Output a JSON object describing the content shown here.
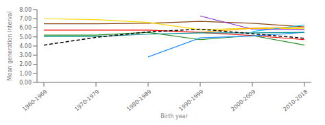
{
  "chart_data": {
    "type": "line",
    "xlabel": "Birth year",
    "ylabel": "Mean generation interval",
    "categories": [
      "1960-1969",
      "1970-1979",
      "1980-1989",
      "1990-1999",
      "2000-2009",
      "2010-2018"
    ],
    "ylim": [
      0.0,
      8.0
    ],
    "yticks": [
      {
        "value": 0.0,
        "label": "0.00"
      },
      {
        "value": 1.0,
        "label": "1.00"
      },
      {
        "value": 2.0,
        "label": "2.00"
      },
      {
        "value": 3.0,
        "label": "3.00"
      },
      {
        "value": 4.0,
        "label": "4.00"
      },
      {
        "value": 5.0,
        "label": "5.00"
      },
      {
        "value": 6.0,
        "label": "6.00"
      },
      {
        "value": 7.0,
        "label": "7.00"
      },
      {
        "value": 8.0,
        "label": "8.00"
      }
    ],
    "grid": false,
    "series": [
      {
        "color": "#ff0000",
        "values": [
          5.75,
          5.75,
          5.75,
          5.5,
          5.15,
          4.7
        ],
        "line_style": "solid"
      },
      {
        "color": "#8B4513",
        "values": [
          6.45,
          6.45,
          6.5,
          6.7,
          6.5,
          6.1
        ],
        "line_style": "solid"
      },
      {
        "color": "#FFD700",
        "values": [
          7.0,
          6.9,
          6.6,
          5.8,
          5.95,
          5.9
        ],
        "line_style": "solid"
      },
      {
        "color": "#228B22",
        "values": [
          5.2,
          5.2,
          5.5,
          4.7,
          5.15,
          4.1
        ],
        "line_style": "solid"
      },
      {
        "color": "#1E90FF",
        "values": [
          null,
          null,
          2.8,
          4.9,
          5.1,
          5.5
        ],
        "line_style": "solid"
      },
      {
        "color": "#00BFFF",
        "values": [
          null,
          null,
          null,
          null,
          5.6,
          6.3
        ],
        "line_style": "solid"
      },
      {
        "color": "#8A2BE2",
        "values": [
          null,
          null,
          null,
          7.3,
          5.85,
          5.8
        ],
        "line_style": "solid"
      },
      {
        "color": "#FFA500",
        "values": [
          null,
          null,
          null,
          5.5,
          5.95,
          6.05
        ],
        "line_style": "solid"
      },
      {
        "color": "#008B8B",
        "values": [
          5.05,
          5.05,
          5.3,
          5.45,
          5.45,
          5.5
        ],
        "line_style": "solid"
      },
      {
        "color": "#000000",
        "values": [
          4.1,
          4.95,
          5.55,
          5.85,
          5.35,
          4.85
        ],
        "line_style": "dashed"
      }
    ]
  }
}
